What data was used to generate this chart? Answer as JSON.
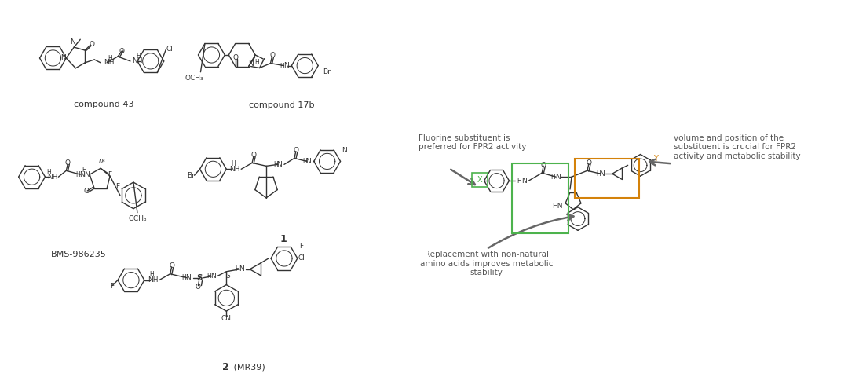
{
  "bg_color": "#ffffff",
  "fig_width": 10.8,
  "fig_height": 4.8,
  "dpi": 100,
  "labels": {
    "compound43": "compound 43",
    "compound17b": "compound 17b",
    "bms": "BMS-986235",
    "comp1": "1",
    "comp2_bold": "2",
    "comp2_normal": " (MR39)"
  },
  "annotations": {
    "fluorine": "Fluorine substituent is\npreferred for FPR2 activity",
    "replacement": "Replacement with non-natural\namino acids improves metabolic\nstability",
    "volume": "volume and position of the\nsubstituent is crucial for FPR2\nactivity and metabolic stability"
  },
  "colors": {
    "text": "#4a4a4a",
    "structure": "#333333",
    "green_box": "#4db34d",
    "orange_box": "#d4820a",
    "arrow": "#666666"
  }
}
